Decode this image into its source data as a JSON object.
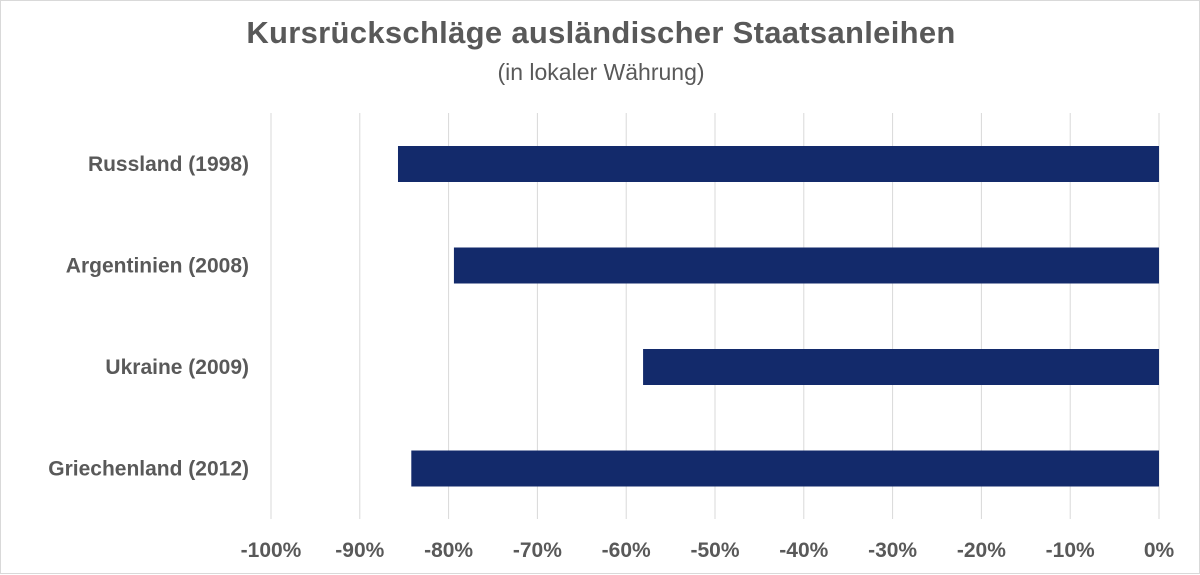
{
  "chart_data": {
    "type": "bar",
    "orientation": "horizontal",
    "title": "Kursrückschläge ausländischer Staatsanleihen",
    "subtitle": "(in lokaler Währung)",
    "categories": [
      "Russland (1998)",
      "Argentinien (2008)",
      "Ukraine (2009)",
      "Griechenland (2012)"
    ],
    "values": [
      -85.7,
      -79.4,
      -58.1,
      -84.2
    ],
    "unit": "%",
    "xlim": [
      -100,
      0
    ],
    "xticks": [
      -100,
      -90,
      -80,
      -70,
      -60,
      -50,
      -40,
      -30,
      -20,
      -10,
      0
    ],
    "xtick_labels": [
      "-100%",
      "-90%",
      "-80%",
      "-70%",
      "-60%",
      "-50%",
      "-40%",
      "-30%",
      "-20%",
      "-10%",
      "0%"
    ],
    "xlabel": "",
    "ylabel": "",
    "grid": "vertical",
    "legend": "none",
    "bar_color": "#132a6b"
  }
}
